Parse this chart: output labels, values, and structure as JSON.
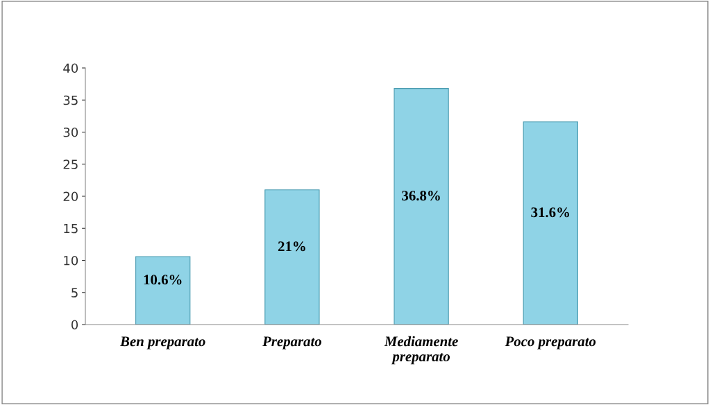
{
  "chart_data": {
    "type": "bar",
    "categories": [
      "Ben preparato",
      "Preparato",
      "Mediamente\npreparato",
      "Poco preparato"
    ],
    "values": [
      10.6,
      21,
      36.8,
      31.6
    ],
    "value_labels": [
      "10.6%",
      "21%",
      "36.8%",
      "31.6%"
    ],
    "color": "#8fd3e6",
    "ylim": [
      0,
      40
    ],
    "yticks": [
      0,
      5,
      10,
      15,
      20,
      25,
      30,
      35,
      40
    ],
    "grid": false,
    "legend": false
  }
}
